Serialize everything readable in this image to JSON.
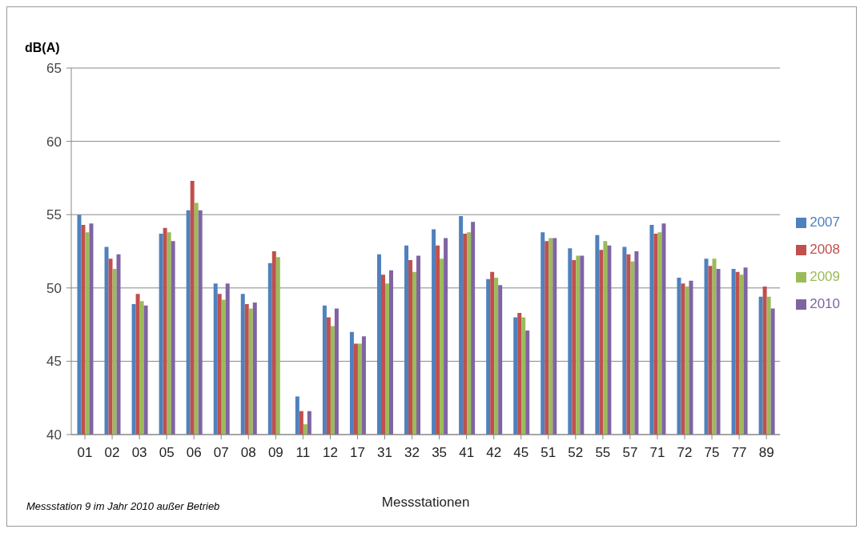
{
  "chart_data": {
    "type": "bar",
    "ylabel": "dB(A)",
    "xlabel": "Messstationen",
    "annotations": [
      "Messstation 9 im Jahr 2010 außer Betrieb"
    ],
    "categories": [
      "01",
      "02",
      "03",
      "05",
      "06",
      "07",
      "08",
      "09",
      "11",
      "12",
      "17",
      "31",
      "32",
      "35",
      "41",
      "42",
      "45",
      "51",
      "52",
      "55",
      "57",
      "71",
      "72",
      "75",
      "77",
      "89"
    ],
    "series": [
      {
        "name": "2007",
        "color": "#4f81bd",
        "values": [
          55.0,
          52.8,
          48.9,
          53.7,
          55.3,
          50.3,
          49.6,
          51.7,
          42.6,
          48.8,
          47.0,
          52.3,
          52.9,
          54.0,
          54.9,
          50.6,
          48.0,
          53.8,
          52.7,
          53.6,
          52.8,
          54.3,
          50.7,
          52.0,
          51.3,
          49.4
        ]
      },
      {
        "name": "2008",
        "color": "#c0504d",
        "values": [
          54.3,
          52.0,
          49.6,
          54.1,
          57.3,
          49.6,
          48.9,
          52.5,
          41.6,
          48.0,
          46.2,
          50.9,
          51.9,
          52.9,
          53.7,
          51.1,
          48.3,
          53.2,
          51.9,
          52.6,
          52.3,
          53.7,
          50.3,
          51.5,
          51.1,
          50.1
        ]
      },
      {
        "name": "2009",
        "color": "#9bbb59",
        "values": [
          53.8,
          51.3,
          49.1,
          53.8,
          55.8,
          49.2,
          48.6,
          52.1,
          40.7,
          47.4,
          46.2,
          50.3,
          51.1,
          52.0,
          53.8,
          50.7,
          48.0,
          53.4,
          52.2,
          53.2,
          51.8,
          53.8,
          50.1,
          52.0,
          50.9,
          49.4
        ]
      },
      {
        "name": "2010",
        "color": "#8064a2",
        "values": [
          54.4,
          52.3,
          48.8,
          53.2,
          55.3,
          50.3,
          49.0,
          null,
          41.6,
          48.6,
          46.7,
          51.2,
          52.2,
          53.4,
          54.5,
          50.2,
          47.1,
          53.4,
          52.2,
          52.9,
          52.5,
          54.4,
          50.5,
          51.3,
          51.4,
          48.6
        ]
      }
    ],
    "ylim": [
      40,
      65
    ],
    "yticks": [
      40,
      45,
      50,
      55,
      60,
      65
    ],
    "grid": "y",
    "legend": "right"
  }
}
